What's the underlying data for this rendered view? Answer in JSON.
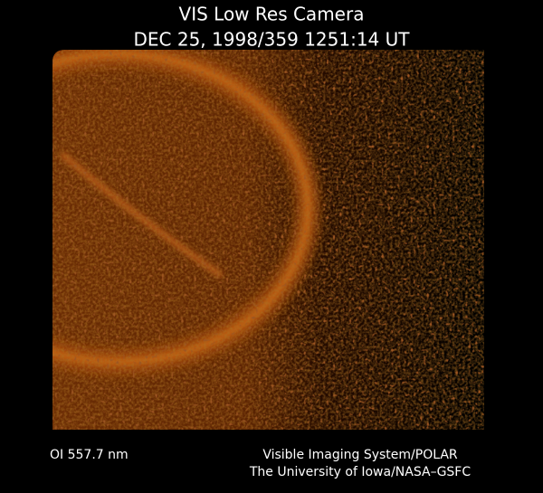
{
  "header": {
    "title": "VIS Low Res Camera",
    "timestamp": "DEC 25, 1998/359 1251:14 UT"
  },
  "footer": {
    "filter": "OI 557.7 nm",
    "credit_line1": "Visible Imaging System/POLAR",
    "credit_line2": "The University of Iowa/NASA–GSFC"
  }
}
